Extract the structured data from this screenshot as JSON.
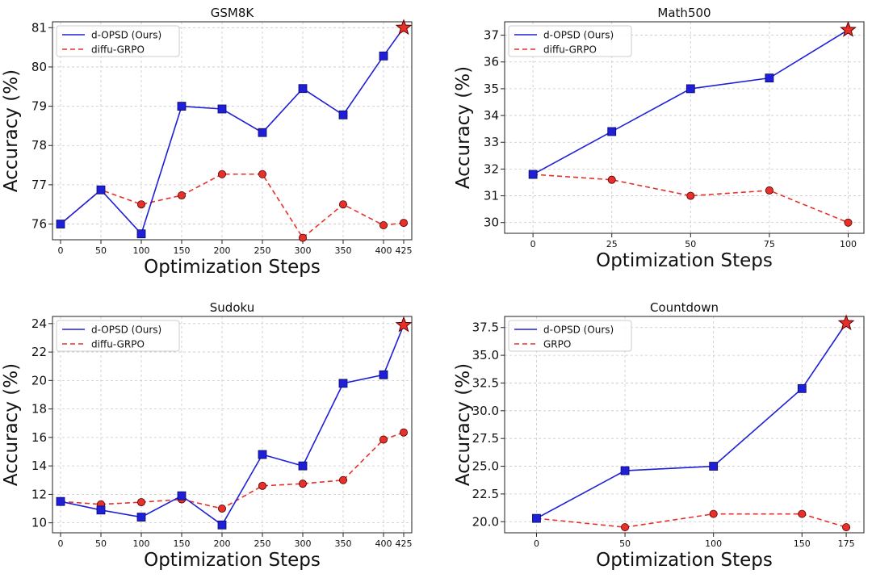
{
  "figure": {
    "colors": {
      "ours": "#1f1fd8",
      "baseline": "#e8302a",
      "grid": "#c8c8c8",
      "axis": "#222222"
    }
  },
  "chart_data": [
    {
      "type": "line",
      "title": "GSM8K",
      "xlabel": "Optimization Steps",
      "ylabel": "Accuracy (%)",
      "x": [
        0,
        50,
        100,
        150,
        200,
        250,
        300,
        350,
        400,
        425
      ],
      "xticks": [
        "0",
        "50",
        "100",
        "150",
        "200",
        "250",
        "300",
        "350",
        "400",
        "425"
      ],
      "yticks": [
        "76",
        "77",
        "78",
        "79",
        "80",
        "81"
      ],
      "xlim": [
        -10,
        435
      ],
      "ylim": [
        75.6,
        81.15
      ],
      "grid": true,
      "legend_position": "top-left",
      "series": [
        {
          "name": "d-OPSD (Ours)",
          "style": "solid",
          "marker": "square",
          "final_marker": "star",
          "values": [
            76.0,
            76.87,
            75.75,
            79.0,
            78.93,
            78.33,
            79.45,
            78.78,
            80.28,
            81.0
          ]
        },
        {
          "name": "diffu-GRPO",
          "style": "dashed",
          "marker": "circle",
          "values": [
            76.0,
            76.87,
            76.5,
            76.73,
            77.27,
            77.27,
            75.65,
            76.5,
            75.97,
            76.03
          ]
        }
      ]
    },
    {
      "type": "line",
      "title": "Math500",
      "xlabel": "Optimization Steps",
      "ylabel": "Accuracy (%)",
      "x": [
        0,
        25,
        50,
        75,
        100
      ],
      "xticks": [
        "0",
        "25",
        "50",
        "75",
        "100"
      ],
      "yticks": [
        "30",
        "31",
        "32",
        "33",
        "34",
        "35",
        "36",
        "37"
      ],
      "xlim": [
        -9,
        105
      ],
      "ylim": [
        29.6,
        37.5
      ],
      "grid": true,
      "legend_position": "top-left",
      "series": [
        {
          "name": "d-OPSD (Ours)",
          "style": "solid",
          "marker": "square",
          "final_marker": "star",
          "values": [
            31.8,
            33.4,
            35.0,
            35.4,
            37.2
          ]
        },
        {
          "name": "diffu-GRPO",
          "style": "dashed",
          "marker": "circle",
          "values": [
            31.8,
            31.6,
            31.0,
            31.2,
            30.0
          ]
        }
      ]
    },
    {
      "type": "line",
      "title": "Sudoku",
      "xlabel": "Optimization Steps",
      "ylabel": "Accuracy (%)",
      "x": [
        0,
        50,
        100,
        150,
        200,
        250,
        300,
        350,
        400,
        425
      ],
      "xticks": [
        "0",
        "50",
        "100",
        "150",
        "200",
        "250",
        "300",
        "350",
        "400",
        "425"
      ],
      "yticks": [
        "10",
        "12",
        "14",
        "16",
        "18",
        "20",
        "22",
        "24"
      ],
      "xlim": [
        -10,
        435
      ],
      "ylim": [
        9.3,
        24.5
      ],
      "grid": true,
      "legend_position": "top-left",
      "series": [
        {
          "name": "d-OPSD (Ours)",
          "style": "solid",
          "marker": "square",
          "final_marker": "star",
          "values": [
            11.5,
            10.9,
            10.4,
            11.9,
            9.85,
            14.8,
            14.0,
            19.8,
            20.4,
            23.9
          ]
        },
        {
          "name": "diffu-GRPO",
          "style": "dashed",
          "marker": "circle",
          "values": [
            11.5,
            11.3,
            11.45,
            11.65,
            11.0,
            12.6,
            12.75,
            13.0,
            15.85,
            16.35
          ]
        }
      ]
    },
    {
      "type": "line",
      "title": "Countdown",
      "xlabel": "Optimization Steps",
      "ylabel": "Accuracy (%)",
      "x": [
        0,
        50,
        100,
        150,
        175
      ],
      "xticks": [
        "0",
        "50",
        "100",
        "150",
        "175"
      ],
      "yticks": [
        "20.0",
        "22.5",
        "25.0",
        "27.5",
        "30.0",
        "32.5",
        "35.0",
        "37.5"
      ],
      "xlim": [
        -18,
        185
      ],
      "ylim": [
        19.0,
        38.5
      ],
      "grid": true,
      "legend_position": "top-left",
      "series": [
        {
          "name": "d-OPSD (Ours)",
          "style": "solid",
          "marker": "square",
          "final_marker": "star",
          "values": [
            20.3,
            24.6,
            25.0,
            32.0,
            37.9
          ]
        },
        {
          "name": "GRPO",
          "style": "dashed",
          "marker": "circle",
          "values": [
            20.3,
            19.5,
            20.7,
            20.7,
            19.5
          ]
        }
      ]
    }
  ]
}
